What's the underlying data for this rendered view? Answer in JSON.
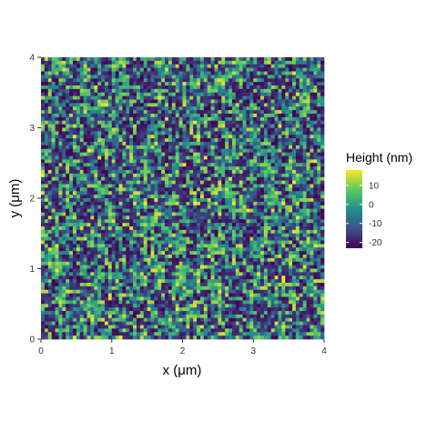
{
  "chart_data": {
    "type": "heatmap",
    "title": "",
    "xlabel": "x (μm)",
    "ylabel": "y (μm)",
    "xlim": [
      0,
      4
    ],
    "ylim": [
      0,
      4
    ],
    "x_ticks": [
      "0",
      "1",
      "2",
      "3",
      "4"
    ],
    "y_ticks": [
      "0",
      "1",
      "2",
      "3",
      "4"
    ],
    "legend": {
      "title": "Height (nm)",
      "placement": "right",
      "range": [
        -23,
        18
      ],
      "ticks": [
        "10",
        "0",
        "-10",
        "-20"
      ]
    },
    "colormap": [
      "#440154",
      "#3b528b",
      "#21918c",
      "#5ec962",
      "#fde725"
    ],
    "grid": false
  }
}
